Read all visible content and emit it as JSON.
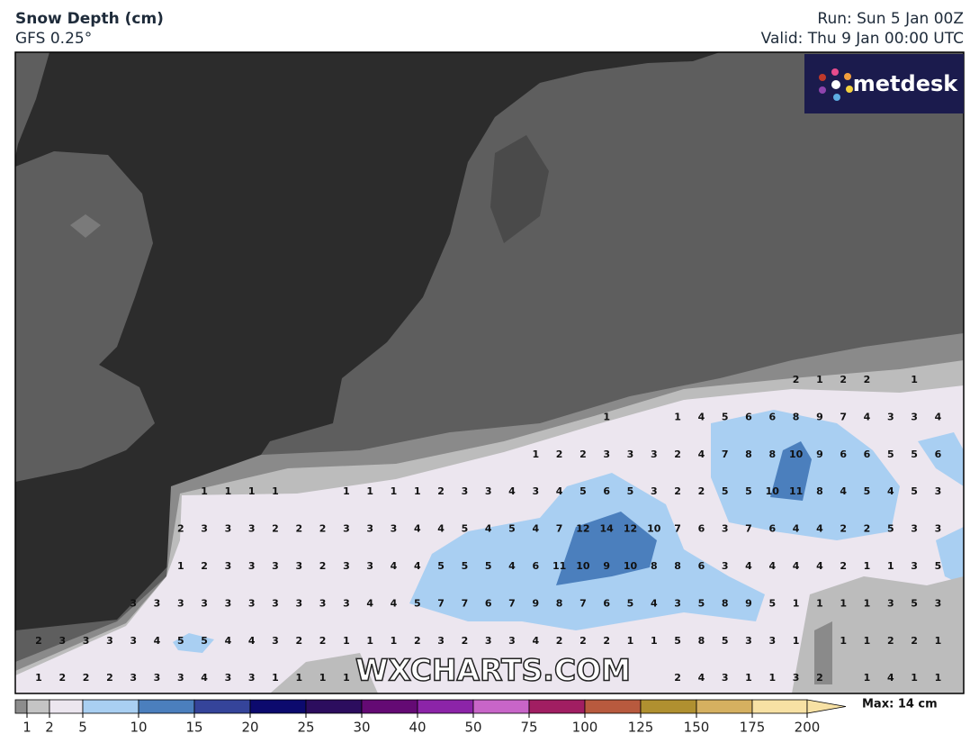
{
  "header": {
    "title": "Snow Depth (cm)",
    "model": "GFS 0.25°",
    "run": "Run: Sun 5 Jan 00Z",
    "valid": "Valid: Thu 9 Jan 00:00 UTC"
  },
  "logo": "metdesk",
  "watermark": "WXCHARTS.COM",
  "grid": [
    [
      null,
      null,
      null,
      null,
      null,
      null,
      null,
      null,
      null,
      null,
      null,
      null,
      null,
      null,
      null,
      null,
      null,
      null,
      null,
      null,
      null,
      null,
      null,
      null,
      null,
      null,
      null,
      null,
      null,
      null,
      null,
      null,
      2,
      1,
      2,
      2,
      null,
      1,
      null
    ],
    [
      null,
      null,
      null,
      null,
      null,
      null,
      null,
      null,
      null,
      null,
      null,
      null,
      null,
      null,
      null,
      null,
      null,
      null,
      null,
      null,
      null,
      null,
      null,
      null,
      1,
      null,
      null,
      1,
      4,
      5,
      6,
      6,
      8,
      9,
      7,
      4,
      3,
      3,
      4
    ],
    [
      null,
      null,
      null,
      null,
      null,
      null,
      null,
      null,
      null,
      null,
      null,
      null,
      null,
      null,
      null,
      null,
      null,
      null,
      null,
      null,
      null,
      1,
      2,
      2,
      3,
      3,
      3,
      2,
      4,
      7,
      8,
      8,
      10,
      9,
      6,
      6,
      5,
      5,
      6
    ],
    [
      null,
      null,
      null,
      null,
      null,
      null,
      null,
      1,
      1,
      1,
      1,
      null,
      null,
      1,
      1,
      1,
      1,
      2,
      3,
      3,
      4,
      3,
      4,
      5,
      6,
      5,
      3,
      2,
      2,
      5,
      5,
      10,
      11,
      8,
      4,
      5,
      4,
      5,
      3
    ],
    [
      null,
      null,
      null,
      null,
      null,
      null,
      2,
      3,
      3,
      3,
      2,
      2,
      2,
      3,
      3,
      3,
      4,
      4,
      5,
      4,
      5,
      4,
      7,
      12,
      14,
      12,
      10,
      7,
      6,
      3,
      7,
      6,
      4,
      4,
      2,
      2,
      5,
      3,
      3
    ],
    [
      null,
      null,
      null,
      null,
      null,
      null,
      1,
      2,
      3,
      3,
      3,
      3,
      2,
      3,
      3,
      4,
      4,
      5,
      5,
      5,
      4,
      6,
      11,
      10,
      9,
      10,
      8,
      8,
      6,
      3,
      4,
      4,
      4,
      4,
      2,
      1,
      1,
      3,
      5
    ],
    [
      null,
      null,
      null,
      null,
      3,
      3,
      3,
      3,
      3,
      3,
      3,
      3,
      3,
      3,
      4,
      4,
      5,
      7,
      7,
      6,
      7,
      9,
      8,
      7,
      6,
      5,
      4,
      3,
      5,
      8,
      9,
      5,
      1,
      1,
      1,
      1,
      3,
      5,
      3
    ],
    [
      2,
      3,
      3,
      3,
      3,
      4,
      5,
      5,
      4,
      4,
      3,
      2,
      2,
      1,
      1,
      1,
      2,
      3,
      2,
      3,
      3,
      4,
      2,
      2,
      2,
      1,
      1,
      5,
      8,
      5,
      3,
      3,
      1,
      null,
      1,
      1,
      2,
      2,
      1
    ],
    [
      1,
      2,
      2,
      2,
      3,
      3,
      3,
      4,
      3,
      3,
      1,
      1,
      1,
      1,
      null,
      null,
      null,
      null,
      null,
      null,
      null,
      null,
      null,
      null,
      null,
      null,
      null,
      2,
      4,
      3,
      1,
      1,
      3,
      2,
      null,
      1,
      4,
      1,
      1
    ]
  ],
  "legend": {
    "levels": [
      1,
      2,
      5,
      10,
      15,
      20,
      25,
      30,
      40,
      50,
      75,
      100,
      125,
      150,
      175,
      200
    ],
    "colors": [
      "#8c8c8c",
      "#c4c4c4",
      "#ece6ef",
      "#a9cff2",
      "#4b7fbd",
      "#35449a",
      "#0c0a6e",
      "#2c0d5e",
      "#640a74",
      "#8c24a8",
      "#c865c8",
      "#a11e62",
      "#b85a3e",
      "#b09030",
      "#d5b060",
      "#f7e1a4"
    ],
    "max": "Max: 14 cm"
  }
}
